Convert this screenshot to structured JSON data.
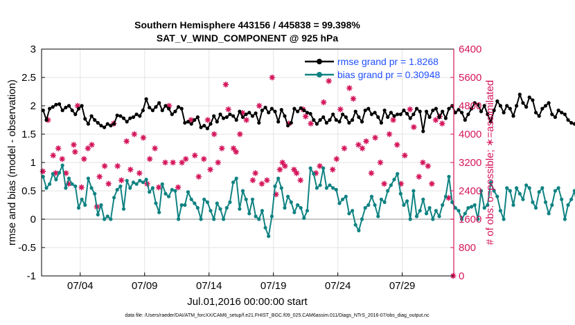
{
  "chart_data": {
    "type": "line",
    "title": "Southern Hemisphere 443156 / 445838 = 99.398%",
    "subtitle": "SAT_V_WIND_COMPONENT @ 925 hPa",
    "xlabel": "Jul.01,2016 00:00:00 start",
    "ylabel": "rmse and bias (model - observation)",
    "y2label": "# of obs: o=possible; ∗=assimilated",
    "xlim": [
      1,
      33
    ],
    "ylim": [
      -1,
      3
    ],
    "y2lim": [
      0,
      6400
    ],
    "xticks": [
      4,
      9,
      14,
      19,
      24,
      29
    ],
    "xtick_labels": [
      "07/04",
      "07/09",
      "07/14",
      "07/19",
      "07/24",
      "07/29"
    ],
    "yticks": [
      "-1",
      "-0.5",
      "0",
      "0.5",
      "1",
      "1.5",
      "2",
      "2.5",
      "3"
    ],
    "y2ticks": [
      "0",
      "800",
      "1600",
      "2400",
      "3200",
      "4000",
      "4800",
      "5600",
      "6400"
    ],
    "grid": true,
    "legend_position": "top-right",
    "colors": {
      "rmse": "#000000",
      "bias": "#0f8282",
      "obs": "#d4145a",
      "zero": "#b3b3b3",
      "legend_text": "#1f4fff"
    },
    "footnote": "data file: /Users/raeder/DAI/ATM_forcXX/CAM6_setup/f.e21.FHIST_BGC.f09_025.CAM6assim.011/Diags_NTrS_2016-07/obs_diag_output.nc",
    "series": [
      {
        "name": "rmse grand pr = 1.8268",
        "axis": "left",
        "x_start": 1.125,
        "x_step": 0.25,
        "values": [
          1.92,
          1.75,
          1.95,
          1.98,
          2.02,
          2.03,
          1.92,
          1.97,
          2.0,
          1.92,
          1.85,
          1.95,
          2.0,
          1.77,
          1.68,
          1.82,
          1.75,
          1.7,
          1.65,
          1.62,
          1.68,
          1.65,
          1.68,
          1.83,
          1.82,
          1.78,
          1.72,
          1.78,
          1.8,
          1.85,
          1.82,
          1.92,
          2.12,
          1.97,
          1.92,
          1.98,
          2.05,
          1.92,
          2.0,
          1.95,
          1.85,
          1.9,
          1.98,
          1.95,
          1.7,
          1.72,
          1.68,
          1.75,
          1.8,
          1.62,
          1.65,
          1.6,
          1.68,
          1.82,
          1.72,
          1.85,
          1.78,
          1.8,
          1.85,
          1.82,
          1.75,
          1.9,
          1.8,
          1.85,
          1.88,
          1.82,
          1.87,
          1.7,
          1.92,
          1.97,
          1.88,
          1.95,
          1.9,
          1.72,
          1.93,
          1.82,
          1.65,
          1.7,
          1.95,
          1.9,
          1.96,
          1.92,
          1.88,
          1.86,
          1.75,
          1.68,
          1.75,
          1.8,
          1.7,
          1.75,
          1.85,
          1.75,
          1.72,
          1.85,
          1.8,
          1.7,
          1.75,
          1.9,
          1.8,
          1.72,
          1.92,
          1.95,
          1.85,
          1.88,
          1.8,
          1.7,
          1.92,
          1.8,
          1.88,
          1.82,
          1.85,
          1.85,
          1.92,
          1.86,
          1.78,
          1.85,
          1.95,
          1.9,
          1.55,
          1.9,
          1.8,
          1.92,
          1.95,
          1.8,
          1.9,
          1.78,
          1.95,
          2.0,
          1.88,
          1.93,
          1.88,
          1.75,
          1.85,
          1.95,
          2.05,
          2.02,
          1.9,
          2.0,
          1.85,
          1.72,
          1.92,
          2.08,
          2.0,
          1.88,
          2.0,
          1.95,
          1.82,
          2.0,
          2.2,
          2.05,
          1.98,
          2.15,
          2.1,
          1.88,
          1.82,
          1.95,
          2.0,
          2.05,
          1.85,
          1.8,
          1.92,
          1.88,
          1.85,
          1.75,
          1.7,
          1.68,
          1.62,
          1.7,
          1.72,
          1.7
        ]
      },
      {
        "name": "bias grand pr = 0.30948",
        "axis": "left",
        "x_start": 1.125,
        "x_step": 0.25,
        "values": [
          0.75,
          0.55,
          0.62,
          0.8,
          0.7,
          0.82,
          0.95,
          0.55,
          0.72,
          0.62,
          0.58,
          0.2,
          0.35,
          0.25,
          0.72,
          0.55,
          0.45,
          0.08,
          0.25,
          0.0,
          0.05,
          0.0,
          0.38,
          0.52,
          0.58,
          0.18,
          0.68,
          0.55,
          0.65,
          0.62,
          0.68,
          0.65,
          0.7,
          0.48,
          0.55,
          0.28,
          0.12,
          0.62,
          0.45,
          0.4,
          0.52,
          0.5,
          0.0,
          0.25,
          0.25,
          0.48,
          0.35,
          0.28,
          0.2,
          0.0,
          0.35,
          0.3,
          0.15,
          0.0,
          0.28,
          0.18,
          0.0,
          0.2,
          0.3,
          0.65,
          0.72,
          0.18,
          0.5,
          0.35,
          0.1,
          0.35,
          0.05,
          0.0,
          0.15,
          -0.15,
          -0.3,
          0.05,
          0.58,
          0.72,
          0.55,
          0.2,
          0.4,
          0.3,
          0.12,
          0.25,
          0.2,
          0.02,
          0.15,
          0.9,
          0.8,
          0.55,
          0.6,
          0.9,
          0.55,
          0.6,
          0.55,
          0.52,
          0.28,
          0.35,
          0.4,
          0.1,
          0.15,
          -0.1,
          -0.2,
          0.0,
          0.2,
          0.25,
          0.4,
          0.25,
          0.05,
          0.35,
          0.3,
          0.5,
          0.6,
          0.7,
          0.8,
          0.45,
          0.25,
          0.32,
          0.0,
          0.5,
          0.05,
          0.15,
          0.35,
          0.1,
          0.2,
          0.0,
          0.15,
          0.05,
          0.25,
          0.4,
          0.75,
          0.3,
          0.2,
          0.15,
          0.0,
          0.1,
          0.2,
          0.22,
          0.25,
          0.0,
          0.5,
          0.2,
          0.25,
          0.65,
          0.5,
          0.4,
          0.15,
          0.0,
          0.55,
          0.5,
          0.25,
          0.55,
          0.45,
          0.35,
          0.6,
          0.55,
          0.3,
          0.2,
          0.48,
          0.55,
          0.3,
          0.1,
          0.25,
          0.5,
          0.55,
          0.35,
          0.0,
          0.25,
          0.35,
          0.5,
          0.15,
          -0.02,
          -0.02,
          0.0,
          0.3,
          0.32
        ]
      },
      {
        "name": "# of obs assimilated",
        "axis": "right",
        "x": [
          1.1,
          1.5,
          1.9,
          2.1,
          2.3,
          2.6,
          2.9,
          3.1,
          3.5,
          3.6,
          3.8,
          4.1,
          4.3,
          4.6,
          4.9,
          5.3,
          5.5,
          5.9,
          6.2,
          6.6,
          6.9,
          7.2,
          7.6,
          7.9,
          8.2,
          8.6,
          8.9,
          9.2,
          9.4,
          9.8,
          10.1,
          10.6,
          10.9,
          11.2,
          11.6,
          11.9,
          12.2,
          12.6,
          12.9,
          13.2,
          13.6,
          13.9,
          14.1,
          14.4,
          14.7,
          15.0,
          15.3,
          15.5,
          15.9,
          16.1,
          16.4,
          16.6,
          16.9,
          17.4,
          17.6,
          17.9,
          18.1,
          18.5,
          18.9,
          19.2,
          19.5,
          19.7,
          19.9,
          20.2,
          20.6,
          20.8,
          21.1,
          21.3,
          21.5,
          21.9,
          22.3,
          22.6,
          22.9,
          23.3,
          23.6,
          23.9,
          24.2,
          24.5,
          24.9,
          25.2,
          25.6,
          25.9,
          26.2,
          26.6,
          26.9,
          27.3,
          27.6,
          28.0,
          28.3,
          28.6,
          28.9,
          29.2,
          29.6,
          29.9,
          30.3,
          30.6,
          31.0,
          31.3,
          31.6,
          31.9,
          32.1,
          32.6,
          32.95
        ],
        "values": [
          2950,
          4400,
          3400,
          2900,
          3600,
          3300,
          2900,
          2600,
          3700,
          3500,
          4800,
          2500,
          3300,
          3600,
          3700,
          1950,
          2800,
          3100,
          2600,
          4300,
          3100,
          2700,
          3800,
          3000,
          4000,
          2900,
          3900,
          2600,
          3300,
          3600,
          2500,
          3200,
          4800,
          3200,
          2500,
          3200,
          3300,
          4400,
          3400,
          2800,
          3300,
          4400,
          3000,
          4000,
          3200,
          3600,
          5400,
          4700,
          3600,
          3500,
          4000,
          4600,
          4400,
          2700,
          2900,
          4800,
          2600,
          2700,
          5600,
          2300,
          3000,
          3200,
          3100,
          4300,
          3000,
          2900,
          2700,
          4700,
          4500,
          4300,
          2900,
          3100,
          4900,
          5500,
          3000,
          3300,
          4700,
          3600,
          5300,
          5000,
          3700,
          3600,
          3800,
          2900,
          3900,
          3200,
          2600,
          4000,
          4400,
          3700,
          2600,
          3400,
          4700,
          4200,
          2800,
          3200,
          3100,
          2600,
          4400,
          4500,
          4300,
          2200,
          0
        ]
      }
    ]
  }
}
